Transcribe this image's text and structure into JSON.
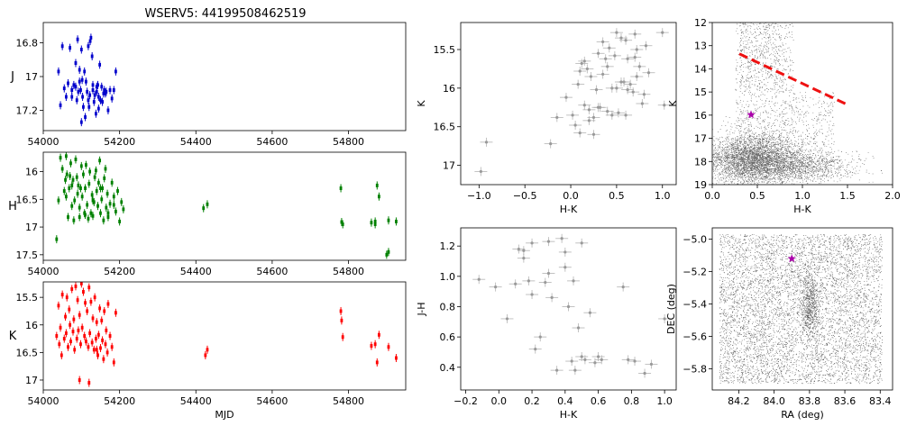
{
  "figure_title": "WSERV5: 44199508462519",
  "chart_data": [
    {
      "id": "lc_j",
      "type": "scatter",
      "ylabel": "J",
      "xlabel": "",
      "xlim": [
        54000,
        54950
      ],
      "ylim": [
        17.32,
        16.68
      ],
      "y_inverted": true,
      "xticks": [
        54000,
        54200,
        54400,
        54600,
        54800
      ],
      "yticks": [
        16.8,
        17.0,
        17.2
      ],
      "color": "#0000cc",
      "errorbars": true,
      "x": [
        54040,
        54045,
        54050,
        54055,
        54060,
        54065,
        54070,
        54075,
        54080,
        54085,
        54088,
        54090,
        54092,
        54095,
        54098,
        54100,
        54103,
        54105,
        54108,
        54110,
        54112,
        54115,
        54118,
        54120,
        54122,
        54125,
        54128,
        54130,
        54133,
        54135,
        54138,
        54140,
        54143,
        54145,
        54148,
        54150,
        54153,
        54155,
        54158,
        54160,
        54163,
        54165,
        54170,
        54175,
        54180,
        54185,
        54190,
        54095,
        54100,
        54102,
        54118,
        54123,
        54130,
        54140,
        54145,
        54085,
        54075
      ],
      "y": [
        16.97,
        17.17,
        16.82,
        17.07,
        17.12,
        17.04,
        16.83,
        17.12,
        17.05,
        16.92,
        17.14,
        16.78,
        17.09,
        16.96,
        17.08,
        16.84,
        17.12,
        17.18,
        16.97,
        17.24,
        17.03,
        17.09,
        16.82,
        17.18,
        17.11,
        16.77,
        16.88,
        17.08,
        17.15,
        17.11,
        17.22,
        17.09,
        17.05,
        17.12,
        16.93,
        17.14,
        17.06,
        17.15,
        17.1,
        17.08,
        17.1,
        17.09,
        17.2,
        17.08,
        17.13,
        17.08,
        16.97,
        17.03,
        17.27,
        17.02,
        17.14,
        16.79,
        17.05,
        17.06,
        17.19,
        17.06,
        17.08
      ]
    },
    {
      "id": "lc_h",
      "type": "scatter",
      "ylabel": "H",
      "xlabel": "",
      "xlim": [
        54000,
        54950
      ],
      "ylim": [
        17.6,
        15.65
      ],
      "y_inverted": true,
      "xticks": [
        54000,
        54200,
        54400,
        54600,
        54800
      ],
      "yticks": [
        16.0,
        16.5,
        17.0,
        17.5
      ],
      "color": "#008000",
      "errorbars": true,
      "x": [
        54035,
        54040,
        54045,
        54050,
        54055,
        54058,
        54060,
        54062,
        54065,
        54068,
        54070,
        54072,
        54075,
        54078,
        54080,
        54082,
        54085,
        54088,
        54090,
        54092,
        54095,
        54098,
        54100,
        54102,
        54105,
        54108,
        54110,
        54112,
        54115,
        54118,
        54120,
        54122,
        54125,
        54128,
        54130,
        54133,
        54135,
        54138,
        54140,
        54143,
        54145,
        54148,
        54150,
        54153,
        54155,
        54158,
        54160,
        54163,
        54165,
        54168,
        54170,
        54175,
        54180,
        54185,
        54190,
        54195,
        54200,
        54205,
        54210,
        54060,
        54075,
        54095,
        54110,
        54130,
        54150,
        54170,
        54185,
        54420,
        54430,
        54780,
        54782,
        54785,
        54860,
        54870,
        54875,
        54880,
        54900,
        54905,
        54925,
        54870,
        54905
      ],
      "y": [
        17.22,
        16.52,
        15.75,
        15.95,
        16.35,
        16.15,
        15.72,
        16.05,
        16.82,
        16.3,
        16.08,
        15.85,
        16.62,
        16.15,
        16.88,
        16.52,
        15.78,
        16.1,
        16.4,
        16.25,
        16.82,
        16.3,
        15.9,
        16.45,
        16.05,
        16.75,
        16.3,
        15.88,
        16.6,
        16.85,
        16.22,
        16.0,
        16.75,
        16.42,
        16.8,
        16.55,
        16.1,
        15.98,
        16.35,
        16.62,
        16.2,
        15.8,
        16.75,
        16.5,
        16.3,
        16.88,
        16.12,
        15.95,
        16.65,
        16.4,
        16.82,
        16.58,
        16.2,
        16.45,
        16.72,
        16.35,
        16.9,
        16.55,
        16.68,
        16.45,
        16.25,
        16.65,
        16.78,
        16.52,
        16.3,
        16.75,
        16.6,
        16.66,
        16.59,
        16.3,
        16.91,
        16.95,
        16.92,
        16.9,
        16.25,
        16.45,
        17.5,
        17.45,
        16.9,
        16.95,
        16.88
      ]
    },
    {
      "id": "lc_k",
      "type": "scatter",
      "ylabel": "K",
      "xlabel": "MJD",
      "xlim": [
        54000,
        54950
      ],
      "ylim": [
        17.18,
        15.22
      ],
      "y_inverted": true,
      "xticks": [
        54000,
        54200,
        54400,
        54600,
        54800
      ],
      "yticks": [
        15.5,
        16.0,
        16.5,
        17.0
      ],
      "color": "#ff0000",
      "errorbars": true,
      "x": [
        54035,
        54040,
        54042,
        54045,
        54048,
        54050,
        54055,
        54058,
        54060,
        54062,
        54065,
        54068,
        54070,
        54072,
        54075,
        54078,
        54080,
        54082,
        54085,
        54088,
        54090,
        54092,
        54095,
        54098,
        54100,
        54102,
        54105,
        54108,
        54110,
        54112,
        54115,
        54118,
        54120,
        54122,
        54125,
        54128,
        54130,
        54133,
        54135,
        54138,
        54140,
        54143,
        54145,
        54148,
        54150,
        54153,
        54155,
        54158,
        54160,
        54163,
        54165,
        54168,
        54170,
        54175,
        54180,
        54185,
        54190,
        54095,
        54120,
        54140,
        54425,
        54430,
        54780,
        54782,
        54785,
        54860,
        54870,
        54875,
        54880,
        54905,
        54925
      ],
      "y": [
        16.2,
        15.65,
        16.35,
        16.05,
        16.55,
        15.45,
        16.25,
        15.85,
        16.15,
        15.5,
        16.4,
        15.72,
        16.0,
        16.3,
        15.35,
        16.12,
        15.9,
        16.45,
        15.3,
        16.25,
        15.55,
        16.1,
        15.82,
        16.35,
        15.25,
        16.05,
        15.4,
        16.2,
        15.6,
        16.3,
        15.75,
        16.4,
        15.32,
        16.15,
        15.58,
        16.32,
        15.88,
        16.45,
        15.5,
        16.25,
        15.95,
        16.55,
        16.18,
        15.7,
        16.42,
        15.92,
        16.28,
        16.62,
        15.75,
        16.35,
        16.1,
        16.5,
        15.62,
        16.2,
        16.4,
        16.68,
        15.78,
        17.0,
        17.05,
        16.45,
        16.55,
        16.45,
        15.75,
        15.92,
        16.22,
        16.38,
        16.35,
        16.68,
        16.18,
        16.4,
        16.6
      ]
    },
    {
      "id": "cmd_k_vs_hk",
      "type": "scatter",
      "xlabel": "H-K",
      "ylabel": "K",
      "xlim": [
        -1.2,
        1.15
      ],
      "ylim": [
        17.25,
        15.15
      ],
      "y_inverted": true,
      "xticks": [
        -1.0,
        -0.5,
        0.0,
        0.5,
        1.0
      ],
      "yticks": [
        15.5,
        16.0,
        16.5,
        17.0
      ],
      "color": "#aaaaaa",
      "errorbars": true,
      "x": [
        -0.98,
        -0.92,
        -0.22,
        -0.15,
        -0.05,
        0.02,
        0.05,
        0.08,
        0.1,
        0.12,
        0.15,
        0.18,
        0.2,
        0.22,
        0.25,
        0.28,
        0.3,
        0.32,
        0.35,
        0.38,
        0.4,
        0.42,
        0.45,
        0.48,
        0.5,
        0.52,
        0.55,
        0.58,
        0.6,
        0.62,
        0.65,
        0.68,
        0.7,
        0.72,
        0.75,
        0.78,
        0.8,
        0.82,
        0.85,
        1.0,
        1.02,
        0.15,
        0.25,
        0.35,
        0.45,
        0.55,
        0.62,
        0.72,
        0.3,
        0.4,
        0.5,
        0.6,
        0.7,
        0.2,
        0.1
      ],
      "y": [
        17.08,
        16.7,
        16.72,
        16.38,
        16.12,
        16.35,
        16.48,
        15.95,
        16.58,
        15.68,
        16.22,
        15.75,
        16.42,
        15.85,
        16.38,
        16.02,
        15.55,
        16.25,
        15.82,
        15.62,
        16.3,
        15.48,
        16.0,
        15.58,
        15.28,
        16.32,
        15.35,
        15.92,
        16.35,
        15.62,
        15.95,
        16.05,
        15.3,
        15.85,
        15.72,
        16.2,
        16.08,
        15.45,
        15.8,
        15.28,
        16.22,
        15.65,
        16.6,
        15.4,
        16.35,
        15.92,
        16.02,
        15.5,
        16.25,
        15.72,
        16.0,
        15.38,
        15.6,
        16.28,
        15.78
      ]
    },
    {
      "id": "field_cmd",
      "type": "scatter",
      "xlabel": "H-K",
      "ylabel": "K",
      "xlim": [
        0.0,
        2.0
      ],
      "ylim": [
        19,
        12
      ],
      "y_inverted": true,
      "xticks": [
        0.0,
        0.5,
        1.0,
        1.5,
        2.0
      ],
      "yticks": [
        12,
        13,
        14,
        15,
        16,
        17,
        18,
        19
      ],
      "color": "#000000",
      "line": {
        "x": [
          0.3,
          1.5
        ],
        "y": [
          13.35,
          15.55
        ],
        "color": "#ee1111",
        "style": "dashed"
      },
      "target": {
        "x": 0.43,
        "y": 15.98,
        "marker": "star",
        "color": "#aa00aa"
      }
    },
    {
      "id": "color_color",
      "type": "scatter",
      "xlabel": "H-K",
      "ylabel": "J-H",
      "xlim": [
        -0.23,
        1.07
      ],
      "ylim": [
        0.25,
        1.32
      ],
      "y_inverted": false,
      "xticks": [
        -0.2,
        0.0,
        0.2,
        0.4,
        0.6,
        0.8,
        1.0
      ],
      "yticks": [
        0.4,
        0.6,
        0.8,
        1.0,
        1.2
      ],
      "color": "#aaaaaa",
      "errorbars": true,
      "x": [
        -0.12,
        -0.02,
        0.05,
        0.1,
        0.12,
        0.15,
        0.18,
        0.2,
        0.22,
        0.25,
        0.28,
        0.3,
        0.32,
        0.35,
        0.38,
        0.4,
        0.42,
        0.44,
        0.46,
        0.48,
        0.5,
        0.52,
        0.55,
        0.58,
        0.6,
        0.62,
        0.75,
        0.78,
        0.82,
        0.88,
        0.92,
        1.0,
        0.4,
        0.3,
        0.2,
        0.15,
        0.45,
        0.5
      ],
      "y": [
        0.98,
        0.93,
        0.72,
        0.95,
        1.18,
        1.12,
        0.97,
        1.22,
        0.52,
        0.6,
        0.96,
        1.02,
        0.86,
        0.38,
        1.25,
        1.16,
        0.8,
        0.44,
        0.38,
        0.66,
        0.47,
        0.45,
        0.76,
        0.43,
        0.47,
        0.45,
        0.93,
        0.45,
        0.44,
        0.36,
        0.42,
        0.72,
        1.06,
        1.23,
        0.88,
        1.17,
        0.97,
        1.22
      ]
    },
    {
      "id": "sky_map",
      "type": "scatter",
      "xlabel": "RA (deg)",
      "ylabel": "DEC (deg)",
      "xlim": [
        84.35,
        83.33
      ],
      "ylim": [
        -5.93,
        -4.93
      ],
      "x_inverted": true,
      "xticks": [
        84.2,
        84.0,
        83.8,
        83.6,
        83.4
      ],
      "yticks": [
        -5.0,
        -5.2,
        -5.4,
        -5.6,
        -5.8
      ],
      "color": "#000000",
      "target": {
        "x": 83.9,
        "y": -5.12,
        "marker": "star",
        "color": "#aa00aa"
      }
    }
  ]
}
